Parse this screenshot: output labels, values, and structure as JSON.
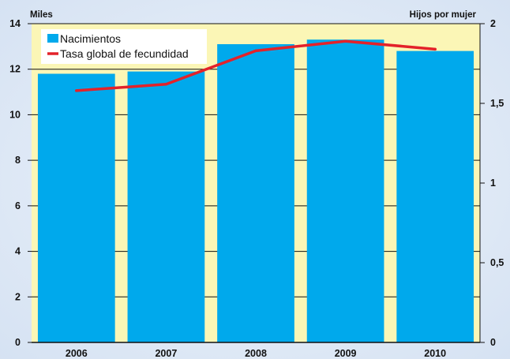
{
  "chart_data": {
    "type": "bar+line",
    "categories": [
      "2006",
      "2007",
      "2008",
      "2009",
      "2010"
    ],
    "left_axis": {
      "unit_label": "Miles",
      "ylim": [
        0,
        14
      ],
      "ticks": [
        "0",
        "2",
        "4",
        "6",
        "8",
        "10",
        "12",
        "14"
      ]
    },
    "right_axis": {
      "unit_label": "Hijos por mujer",
      "ylim": [
        0,
        2
      ],
      "ticks": [
        "0",
        "0,5",
        "1",
        "1,5",
        "2"
      ]
    },
    "series": [
      {
        "name": "Nacimientos",
        "type": "bar",
        "axis": "left",
        "values": [
          11.8,
          11.9,
          13.1,
          13.3,
          12.8
        ]
      },
      {
        "name": "Tasa global de fecundidad",
        "type": "line",
        "axis": "right",
        "values": [
          1.58,
          1.62,
          1.83,
          1.89,
          1.84
        ]
      }
    ],
    "legend_position": "top-left",
    "grid": "horizontal",
    "colors": {
      "background": "#dfe9f6",
      "plot_background": "#fbf6b6",
      "bars": "#00a9ec",
      "line": "#e3222a",
      "grid": "#111111"
    }
  }
}
